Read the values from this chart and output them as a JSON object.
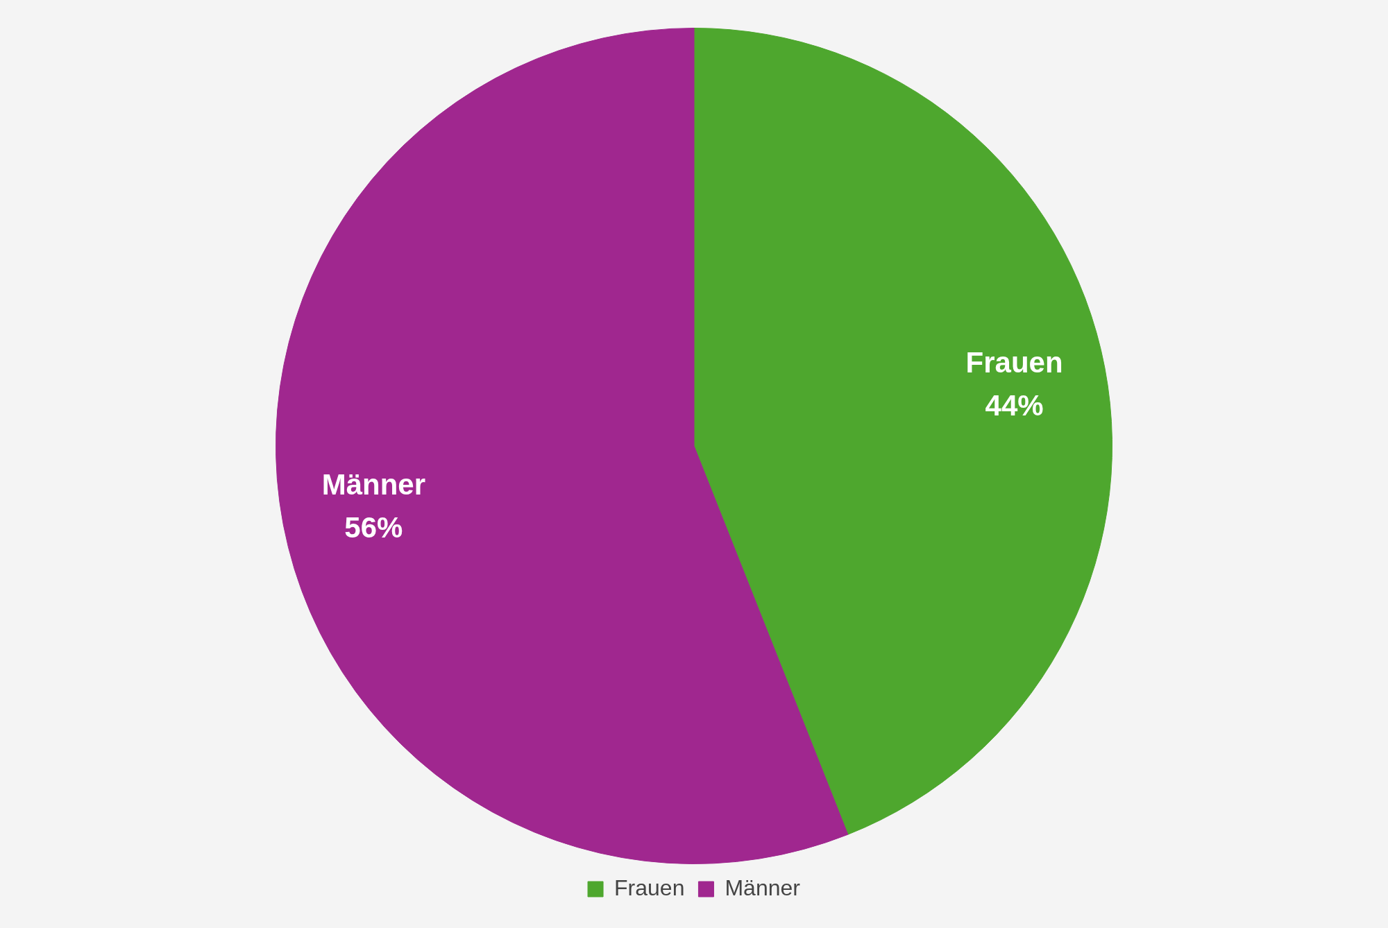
{
  "chart_data": {
    "type": "pie",
    "categories": [
      "Frauen",
      "Männer"
    ],
    "values": [
      44,
      56
    ],
    "colors": [
      "#4ea72e",
      "#a0278f"
    ],
    "value_labels": [
      "44%",
      "56%"
    ],
    "legend": "bottom"
  }
}
